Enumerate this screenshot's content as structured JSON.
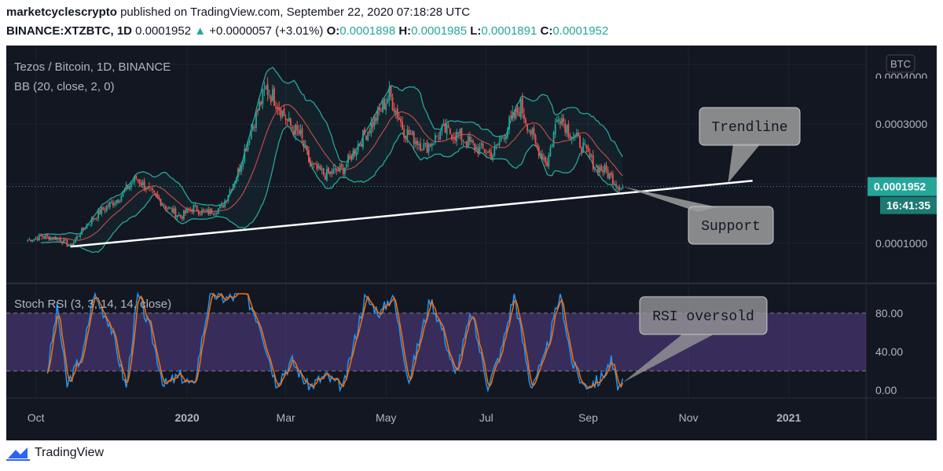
{
  "header": {
    "author": "marketcyclescrypto",
    "published": "published on TradingView.com, September 22, 2020 07:18:28 UTC",
    "symbol": "BINANCE:XTZBTC, 1D",
    "price": "0.0001952",
    "change": "+0.0000057 (+3.01%)",
    "open_label": "O:",
    "open": "0.0001898",
    "high_label": "H:",
    "high": "0.0001985",
    "low_label": "L:",
    "low": "0.0001891",
    "close_label": "C:",
    "close": "0.0001952"
  },
  "footer": {
    "brand": "TradingView",
    "logo_icon": "tradingview-logo-icon"
  },
  "colors": {
    "background": "#131722",
    "grid": "#1e222d",
    "up": "#26a69a",
    "down": "#ef5350",
    "bb_band": "#26a69a",
    "bb_mid": "#ef5350",
    "rsi_k": "#2196f3",
    "rsi_d": "#ff6d00",
    "rsi_zone": "#7e57c2",
    "trendline": "#ffffff",
    "callout": "#9e9e9e"
  },
  "chart_data": [
    {
      "type": "candlestick",
      "title": "Tezos / Bitcoin, 1D, BINANCE",
      "indicator_label": "BB (20, close, 2, 0)",
      "currency_badge": "BTC",
      "ylim": [
        3.4e-05,
        0.000432
      ],
      "y_ticks": [
        0.0001,
        0.0003
      ],
      "y_tick_labels": [
        "0.0001000",
        "0.0003000"
      ],
      "top_tick_label": "0.0004000",
      "last_price": {
        "value": 0.0001952,
        "label": "0.0001952",
        "countdown": "16:41:35"
      },
      "x_ticks": [
        "2019-10-01",
        "2020-01-01",
        "2020-03-01",
        "2020-05-01",
        "2020-07-01",
        "2020-09-01",
        "2020-11-01",
        "2021-01-01"
      ],
      "x_tick_labels": [
        "Oct",
        "2020",
        "Mar",
        "May",
        "Jul",
        "Sep",
        "Nov",
        "2021"
      ],
      "x_range": [
        "2019-09-13",
        "2021-02-17"
      ],
      "close_path": [
        [
          "2019-09-26",
          0.000105
        ],
        [
          "2019-10-05",
          0.000112
        ],
        [
          "2019-10-15",
          0.000108
        ],
        [
          "2019-10-22",
          9.5e-05
        ],
        [
          "2019-10-30",
          0.000125
        ],
        [
          "2019-11-10",
          0.000155
        ],
        [
          "2019-11-20",
          0.000175
        ],
        [
          "2019-12-01",
          0.00021
        ],
        [
          "2019-12-10",
          0.000185
        ],
        [
          "2019-12-20",
          0.00016
        ],
        [
          "2019-12-28",
          0.000145
        ],
        [
          "2020-01-05",
          0.00016
        ],
        [
          "2020-01-12",
          0.00015
        ],
        [
          "2020-01-22",
          0.00016
        ],
        [
          "2020-02-01",
          0.00022
        ],
        [
          "2020-02-10",
          0.0003
        ],
        [
          "2020-02-18",
          0.00036
        ],
        [
          "2020-02-24",
          0.00034
        ],
        [
          "2020-03-03",
          0.0003
        ],
        [
          "2020-03-10",
          0.00028
        ],
        [
          "2020-03-16",
          0.00023
        ],
        [
          "2020-03-25",
          0.000215
        ],
        [
          "2020-04-05",
          0.000225
        ],
        [
          "2020-04-15",
          0.00027
        ],
        [
          "2020-04-25",
          0.00031
        ],
        [
          "2020-05-03",
          0.00035
        ],
        [
          "2020-05-12",
          0.00029
        ],
        [
          "2020-05-25",
          0.00026
        ],
        [
          "2020-06-05",
          0.00029
        ],
        [
          "2020-06-15",
          0.00028
        ],
        [
          "2020-06-25",
          0.00026
        ],
        [
          "2020-07-05",
          0.00025
        ],
        [
          "2020-07-15",
          0.0003
        ],
        [
          "2020-07-22",
          0.00033
        ],
        [
          "2020-07-31",
          0.000265
        ],
        [
          "2020-08-07",
          0.000235
        ],
        [
          "2020-08-14",
          0.00032
        ],
        [
          "2020-08-20",
          0.00029
        ],
        [
          "2020-08-28",
          0.000265
        ],
        [
          "2020-09-05",
          0.00023
        ],
        [
          "2020-09-12",
          0.00022
        ],
        [
          "2020-09-19",
          0.000198
        ],
        [
          "2020-09-22",
          0.0001952
        ]
      ],
      "bollinger_bands": {
        "period": 20,
        "stddev": 2
      },
      "annotations": [
        {
          "type": "trendline",
          "from": [
            "2019-10-22",
            9.45e-05
          ],
          "to": [
            "2020-12-10",
            0.000205
          ]
        },
        {
          "type": "callout",
          "text": "Trendline",
          "pointer_date": "2020-11-25"
        },
        {
          "type": "callout",
          "text": "Support",
          "pointer_date": "2020-09-22"
        }
      ]
    },
    {
      "type": "line",
      "title": "Stoch RSI (3, 3, 14, 14, close)",
      "ylim": [
        -8,
        110
      ],
      "y_ticks": [
        0,
        40,
        80
      ],
      "y_tick_labels": [
        "0.00",
        "40.00",
        "80.00"
      ],
      "bands": [
        20,
        80
      ],
      "series": [
        {
          "key": "K"
        },
        {
          "key": "D"
        }
      ],
      "k_keypoints": [
        [
          "2019-10-08",
          20
        ],
        [
          "2019-10-14",
          85
        ],
        [
          "2019-10-20",
          5
        ],
        [
          "2019-10-30",
          40
        ],
        [
          "2019-11-05",
          100
        ],
        [
          "2019-11-15",
          70
        ],
        [
          "2019-11-25",
          2
        ],
        [
          "2019-12-02",
          100
        ],
        [
          "2019-12-10",
          60
        ],
        [
          "2019-12-18",
          5
        ],
        [
          "2019-12-28",
          15
        ],
        [
          "2020-01-05",
          3
        ],
        [
          "2020-01-15",
          100
        ],
        [
          "2020-01-25",
          95
        ],
        [
          "2020-02-05",
          100
        ],
        [
          "2020-02-14",
          70
        ],
        [
          "2020-02-24",
          8
        ],
        [
          "2020-03-05",
          30
        ],
        [
          "2020-03-15",
          3
        ],
        [
          "2020-03-25",
          15
        ],
        [
          "2020-04-05",
          2
        ],
        [
          "2020-04-18",
          95
        ],
        [
          "2020-04-28",
          80
        ],
        [
          "2020-05-05",
          100
        ],
        [
          "2020-05-15",
          10
        ],
        [
          "2020-05-28",
          95
        ],
        [
          "2020-06-05",
          60
        ],
        [
          "2020-06-12",
          15
        ],
        [
          "2020-06-22",
          80
        ],
        [
          "2020-07-02",
          5
        ],
        [
          "2020-07-10",
          40
        ],
        [
          "2020-07-18",
          100
        ],
        [
          "2020-07-28",
          5
        ],
        [
          "2020-08-05",
          30
        ],
        [
          "2020-08-15",
          100
        ],
        [
          "2020-08-22",
          30
        ],
        [
          "2020-08-29",
          5
        ],
        [
          "2020-09-08",
          10
        ],
        [
          "2020-09-15",
          30
        ],
        [
          "2020-09-19",
          2
        ],
        [
          "2020-09-22",
          5
        ]
      ],
      "annotations": [
        {
          "type": "callout",
          "text": "RSI oversold",
          "pointer_date": "2020-09-22"
        }
      ]
    }
  ]
}
